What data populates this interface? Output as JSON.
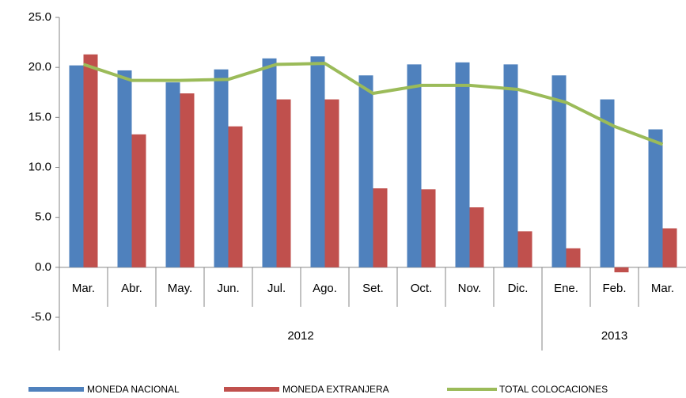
{
  "chart_data": {
    "type": "bar-line",
    "categories": [
      "Mar.",
      "Abr.",
      "May.",
      "Jun.",
      "Jul.",
      "Ago.",
      "Set.",
      "Oct.",
      "Nov.",
      "Dic.",
      "Ene.",
      "Feb.",
      "Mar."
    ],
    "x_groups": [
      {
        "label": "2012",
        "count": 10
      },
      {
        "label": "2013",
        "count": 3
      }
    ],
    "series": [
      {
        "name": "MONEDA NACIONAL",
        "type": "bar",
        "color": "#4f81bd",
        "values": [
          20.2,
          19.7,
          18.5,
          19.8,
          20.9,
          21.1,
          19.2,
          20.3,
          20.5,
          20.3,
          19.2,
          16.8,
          13.8
        ]
      },
      {
        "name": "MONEDA EXTRANJERA",
        "type": "bar",
        "color": "#c0504d",
        "values": [
          21.3,
          13.3,
          17.4,
          14.1,
          16.8,
          16.8,
          7.9,
          7.8,
          6.0,
          3.6,
          1.9,
          -0.5,
          3.9
        ]
      },
      {
        "name": "TOTAL COLOCACIONES",
        "type": "line",
        "color": "#9bbb59",
        "values": [
          20.3,
          18.7,
          18.7,
          18.8,
          20.3,
          20.4,
          17.4,
          18.2,
          18.2,
          17.8,
          16.5,
          14.1,
          12.3
        ]
      }
    ],
    "ylim": [
      -5,
      25
    ],
    "yticks": [
      {
        "value": -5,
        "label": "-5.0"
      },
      {
        "value": 0,
        "label": "0.0"
      },
      {
        "value": 5,
        "label": "5.0"
      },
      {
        "value": 10,
        "label": "10.0"
      },
      {
        "value": 15,
        "label": "15.0"
      },
      {
        "value": 20,
        "label": "20.0"
      },
      {
        "value": 25,
        "label": "25.0"
      }
    ],
    "legend": "bottom"
  }
}
